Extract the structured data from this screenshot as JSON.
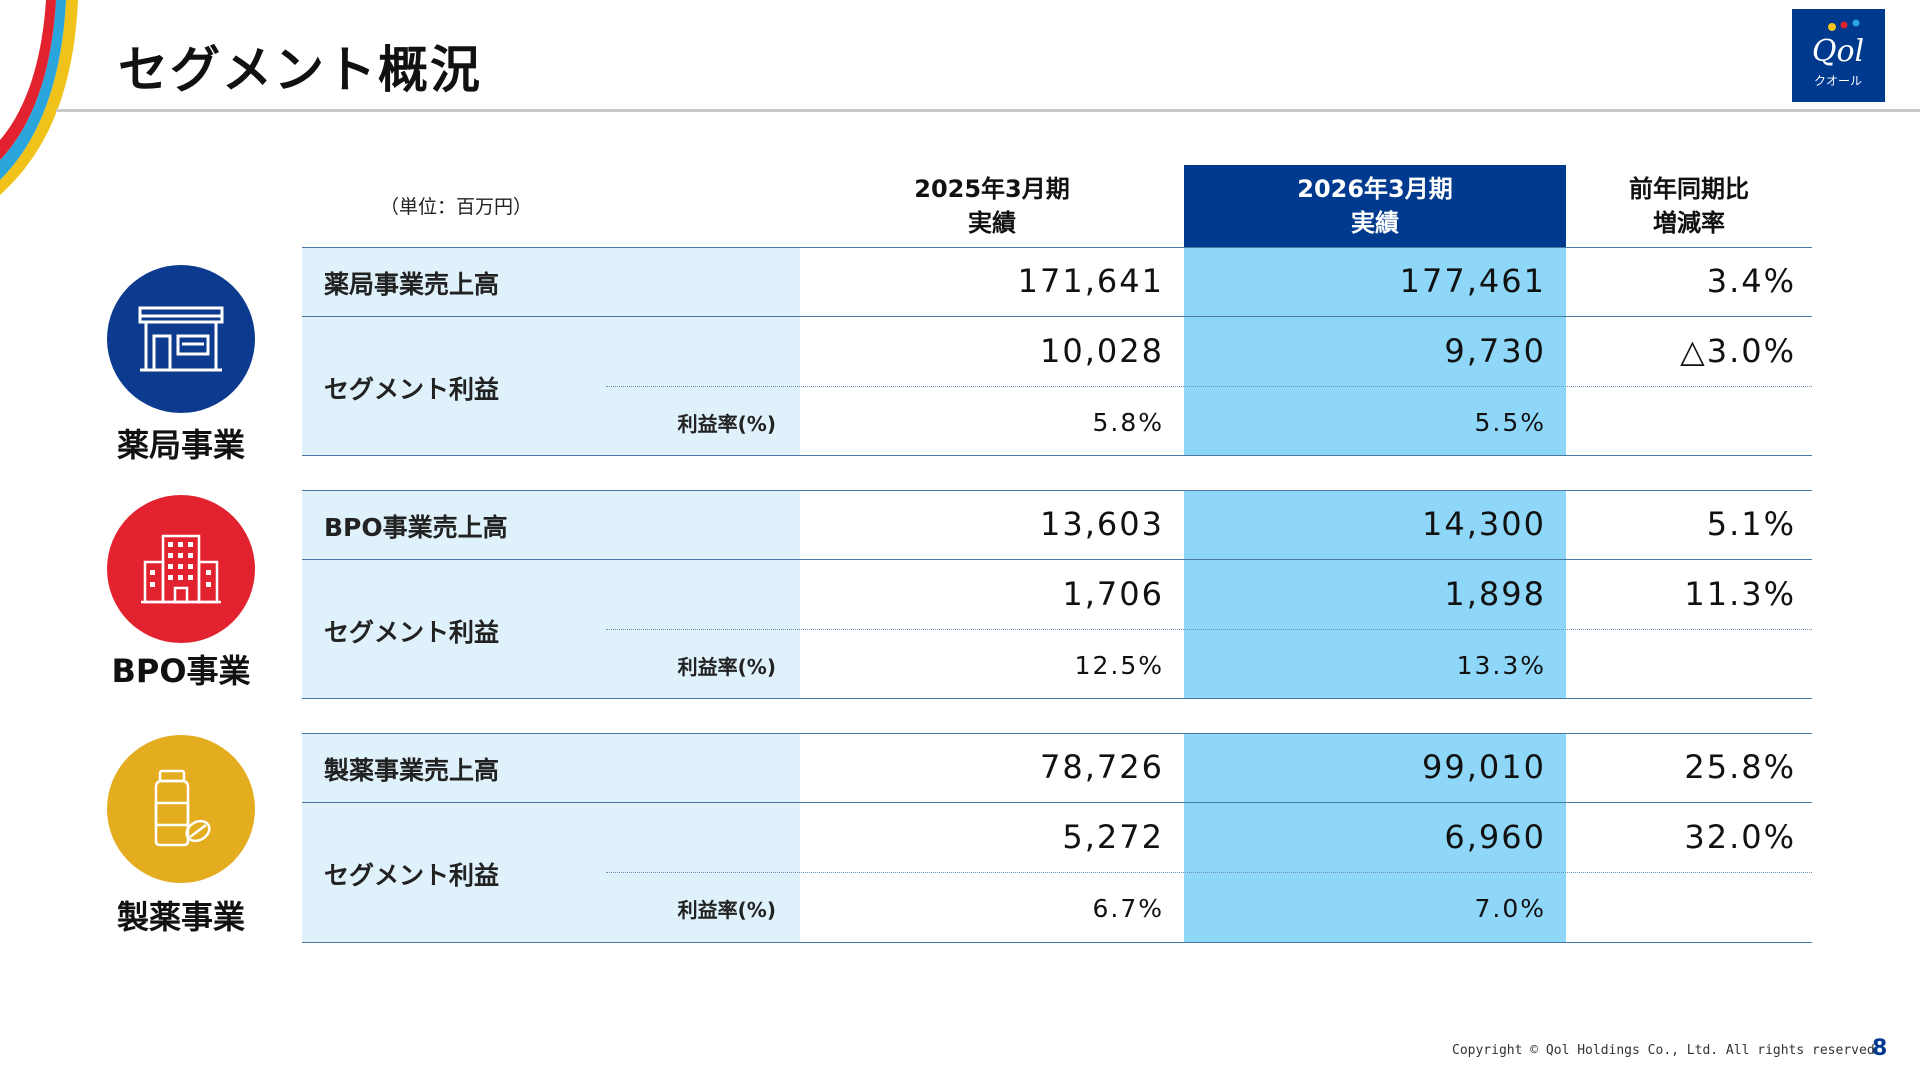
{
  "title": "セグメント概況",
  "unit": "（単位：百万円）",
  "logo": {
    "script_text": "Qol",
    "kana": "クオール"
  },
  "columns": [
    {
      "line1": "2025年3月期",
      "line2": "実績"
    },
    {
      "line1": "2026年3月期",
      "line2": "実績"
    },
    {
      "line1": "前年同期比",
      "line2": "増減率"
    }
  ],
  "segments": [
    {
      "name": "薬局事業",
      "icon": "pharmacy-store-icon",
      "color": "#0b3a8f",
      "sales_label": "薬局事業売上高",
      "sales": [
        "171,641",
        "177,461",
        "3.4%"
      ],
      "profit_label": "セグメント利益",
      "profit": [
        "10,028",
        "9,730",
        "△3.0%"
      ],
      "margin_label": "利益率(%)",
      "margin": [
        "5.8%",
        "5.5%"
      ]
    },
    {
      "name": "BPO事業",
      "icon": "office-building-icon",
      "color": "#e3222f",
      "sales_label": "BPO事業売上高",
      "sales": [
        "13,603",
        "14,300",
        "5.1%"
      ],
      "profit_label": "セグメント利益",
      "profit": [
        "1,706",
        "1,898",
        "11.3%"
      ],
      "margin_label": "利益率(%)",
      "margin": [
        "12.5%",
        "13.3%"
      ]
    },
    {
      "name": "製薬事業",
      "icon": "medicine-bottle-icon",
      "color": "#e3ad1f",
      "sales_label": "製薬事業売上高",
      "sales": [
        "78,726",
        "99,010",
        "25.8%"
      ],
      "profit_label": "セグメント利益",
      "profit": [
        "5,272",
        "6,960",
        "32.0%"
      ],
      "margin_label": "利益率(%)",
      "margin": [
        "6.7%",
        "7.0%"
      ]
    }
  ],
  "footer": {
    "copyright": "Copyright © Qol  Holdings Co., Ltd. All rights reserved.",
    "page": "8"
  },
  "colors": {
    "brand_navy": "#003a8f",
    "highlight_column": "#8fd7f9",
    "label_band": "#dff1fa"
  }
}
